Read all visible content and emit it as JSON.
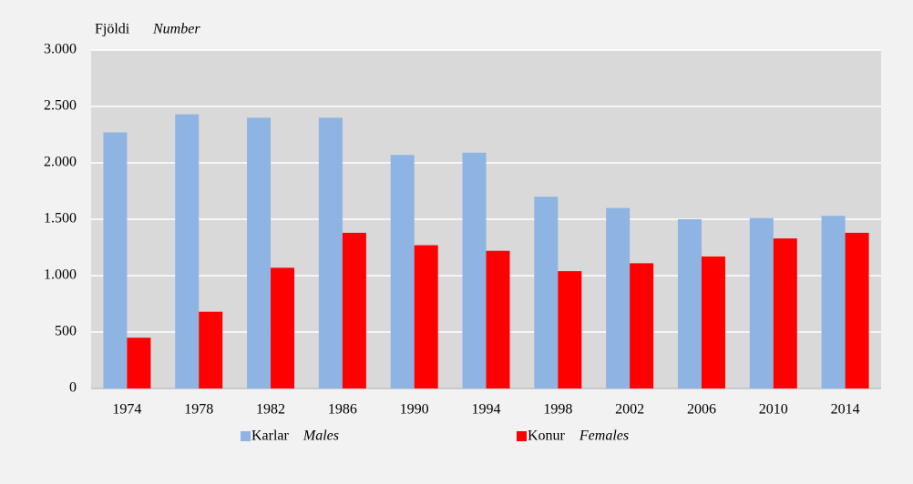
{
  "chart_data": {
    "type": "bar",
    "y_label": "Fjöldi",
    "y_label_en": "Number",
    "categories": [
      "1974",
      "1978",
      "1982",
      "1986",
      "1990",
      "1994",
      "1998",
      "2002",
      "2006",
      "2010",
      "2014"
    ],
    "series": [
      {
        "name": "Karlar",
        "name_en": "Males",
        "color": "#8db4e2",
        "values": [
          2270,
          2430,
          2400,
          2400,
          2070,
          2090,
          1700,
          1600,
          1500,
          1510,
          1530
        ]
      },
      {
        "name": "Konur",
        "name_en": "Females",
        "color": "#ff0000",
        "values": [
          450,
          680,
          1070,
          1380,
          1270,
          1220,
          1040,
          1110,
          1170,
          1330,
          1380
        ]
      }
    ],
    "ylim": [
      0,
      3000
    ],
    "yticks": [
      0,
      500,
      {
        "value": 1000,
        "label": "1.000"
      },
      {
        "value": 1500,
        "label": "1.500"
      },
      {
        "value": 2000,
        "label": "2.000"
      },
      {
        "value": 2500,
        "label": "2.500"
      },
      {
        "value": 3000,
        "label": "3.000"
      }
    ],
    "grid": true,
    "legend": "bottom"
  }
}
